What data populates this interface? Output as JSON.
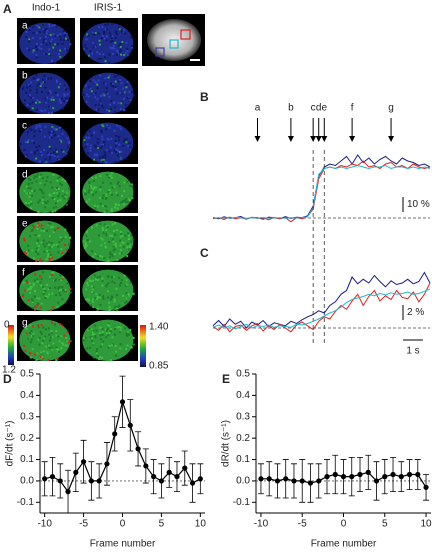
{
  "panels": [
    "A",
    "B",
    "C",
    "D",
    "E"
  ],
  "panel_a": {
    "columns": [
      "Indo-1",
      "IRIS-1"
    ],
    "rows": [
      "a",
      "b",
      "c",
      "d",
      "e",
      "f",
      "g"
    ],
    "colorbar_left": [
      "0",
      "1.2"
    ],
    "colorbar_right": [
      "1.40",
      "0.85"
    ]
  },
  "chart_data": [
    {
      "type": "trace",
      "series": [
        {
          "color": "#1a1a8c",
          "values": [
            0.5,
            -0.5,
            0.8,
            -0.3,
            0.2,
            1.0,
            -0.6,
            0.4,
            0.3,
            -0.8,
            0.6,
            0.2,
            -0.4,
            0.9,
            -0.2,
            0.5,
            0.3,
            1.5,
            8,
            28,
            34,
            36,
            35,
            38,
            41,
            36,
            42,
            37,
            40,
            36,
            39,
            41,
            38,
            36,
            40,
            38,
            37,
            35,
            36,
            34
          ]
        },
        {
          "color": "#e02020",
          "values": [
            -0.5,
            0.3,
            -1.0,
            0.6,
            -0.4,
            0.2,
            -0.8,
            0.5,
            -0.3,
            0.1,
            -1.2,
            0.4,
            -0.6,
            0.3,
            -2.5,
            0.2,
            -0.5,
            1.0,
            6,
            26,
            33,
            34,
            33,
            35,
            34,
            36,
            35,
            38,
            34,
            35,
            33,
            36,
            37,
            34,
            35,
            33,
            36,
            34,
            33,
            34
          ]
        },
        {
          "color": "#20b8d0",
          "values": [
            0.2,
            0.0,
            0.3,
            -0.2,
            0.4,
            0.1,
            -0.3,
            0.2,
            0.0,
            0.3,
            -0.1,
            0.2,
            0.1,
            -0.2,
            0.3,
            0.0,
            0.2,
            0.8,
            7,
            29,
            33,
            34,
            33,
            34,
            33,
            34,
            35,
            34,
            33,
            34,
            34,
            35,
            33,
            34,
            34,
            33,
            34,
            33,
            34,
            33
          ]
        }
      ],
      "events": [
        {
          "label": "a",
          "at": 8
        },
        {
          "label": "b",
          "at": 14
        },
        {
          "label": "c",
          "at": 18,
          "dashed": true
        },
        {
          "label": "d",
          "at": 19
        },
        {
          "label": "e",
          "at": 20,
          "dashed": true
        },
        {
          "label": "f",
          "at": 25
        },
        {
          "label": "g",
          "at": 32
        }
      ],
      "scalebar": {
        "value": 10,
        "label": "10 %"
      }
    },
    {
      "type": "trace",
      "series": [
        {
          "color": "#1a1a8c",
          "values": [
            0.3,
            1.0,
            0.2,
            1.2,
            0.5,
            0.9,
            0.0,
            0.8,
            0.4,
            1.0,
            0.2,
            0.7,
            0.5,
            0.3,
            0.9,
            0.6,
            1.1,
            1.5,
            1.8,
            2.3,
            2.0,
            3.0,
            3.5,
            4.5,
            5.0,
            6.8,
            5.9,
            6.5,
            6.0,
            7.0,
            6.2,
            5.5,
            6.3,
            5.8,
            6.0,
            6.5,
            5.9,
            6.2,
            7.4,
            6.0
          ]
        },
        {
          "color": "#e02020",
          "values": [
            0.2,
            -0.3,
            0.5,
            -0.5,
            0.2,
            0.4,
            -0.3,
            0.3,
            0.6,
            -0.4,
            0.3,
            -0.2,
            0.5,
            0.0,
            -0.5,
            0.4,
            0.8,
            0.3,
            -0.2,
            0.9,
            1.5,
            1.2,
            2.2,
            3.0,
            2.5,
            3.6,
            4.5,
            3.0,
            4.2,
            5.0,
            3.6,
            4.3,
            3.8,
            5.0,
            4.1,
            3.9,
            4.8,
            3.5,
            4.5,
            6.0
          ]
        },
        {
          "color": "#20b8d0",
          "values": [
            0.1,
            0.4,
            0.0,
            0.3,
            -0.1,
            0.2,
            0.5,
            0.0,
            0.3,
            0.2,
            0.4,
            0.1,
            0.3,
            0.2,
            0.1,
            0.5,
            0.4,
            0.6,
            0.9,
            1.2,
            1.6,
            2.0,
            2.3,
            2.8,
            3.4,
            3.8,
            4.0,
            4.2,
            4.5,
            4.3,
            4.6,
            4.4,
            4.7,
            4.5,
            4.6,
            4.8,
            4.5,
            4.6,
            4.9,
            5.2
          ]
        }
      ],
      "scalebar": {
        "value": 2,
        "label": "2 %"
      },
      "time_scalebar": {
        "value": 1,
        "label": "1 s"
      }
    },
    {
      "type": "errorline",
      "ylabel": "dF/dt (s⁻¹)",
      "xlabel": "Frame number",
      "color": "#000000",
      "x": [
        -10,
        -9,
        -8,
        -7,
        -6,
        -5,
        -4,
        -3,
        -2,
        -1,
        0,
        1,
        2,
        3,
        4,
        5,
        6,
        7,
        8,
        9,
        10
      ],
      "values": [
        0.01,
        0.02,
        0.0,
        -0.05,
        0.04,
        0.09,
        0.0,
        0.0,
        0.08,
        0.22,
        0.37,
        0.26,
        0.15,
        0.07,
        0.02,
        0.0,
        0.04,
        0.02,
        0.06,
        -0.01,
        0.01
      ],
      "errors": [
        0.08,
        0.09,
        0.08,
        0.1,
        0.09,
        0.1,
        0.09,
        0.08,
        0.1,
        0.08,
        0.12,
        0.12,
        0.08,
        0.08,
        0.08,
        0.08,
        0.07,
        0.07,
        0.08,
        0.09,
        0.07
      ],
      "xlim": [
        -10.6,
        10.6
      ],
      "ylim": [
        -0.15,
        0.5
      ],
      "xticks": [
        -10,
        -5,
        0,
        5,
        10
      ],
      "yticks": [
        -0.1,
        {
          "value": 0,
          "label": "0.0"
        },
        0.1,
        0.2,
        0.3,
        0.4,
        0.5
      ]
    },
    {
      "type": "errorline",
      "ylabel": "dR/dt (s⁻¹)",
      "xlabel": "Frame number",
      "color": "#000000",
      "x": [
        -10,
        -9,
        -8,
        -7,
        -6,
        -5,
        -4,
        -3,
        -2,
        -1,
        0,
        1,
        2,
        3,
        4,
        5,
        6,
        7,
        8,
        9,
        10
      ],
      "values": [
        0.01,
        0.01,
        0.0,
        0.01,
        0.0,
        0.0,
        -0.01,
        0.0,
        0.02,
        0.03,
        0.02,
        0.02,
        0.03,
        0.04,
        0.0,
        0.02,
        0.03,
        0.02,
        0.03,
        0.03,
        -0.03
      ],
      "errors": [
        0.07,
        0.08,
        0.08,
        0.09,
        0.08,
        0.1,
        0.09,
        0.08,
        0.08,
        0.09,
        0.08,
        0.09,
        0.08,
        0.08,
        0.09,
        0.08,
        0.08,
        0.07,
        0.07,
        0.07,
        0.06
      ],
      "xlim": [
        -10.6,
        10.6
      ],
      "ylim": [
        -0.15,
        0.5
      ],
      "xticks": [
        -10,
        -5,
        0,
        5,
        10
      ],
      "yticks": [
        -0.1,
        {
          "value": 0,
          "label": "0.0"
        },
        0.1,
        0.2,
        0.3,
        0.4,
        0.5
      ]
    }
  ]
}
